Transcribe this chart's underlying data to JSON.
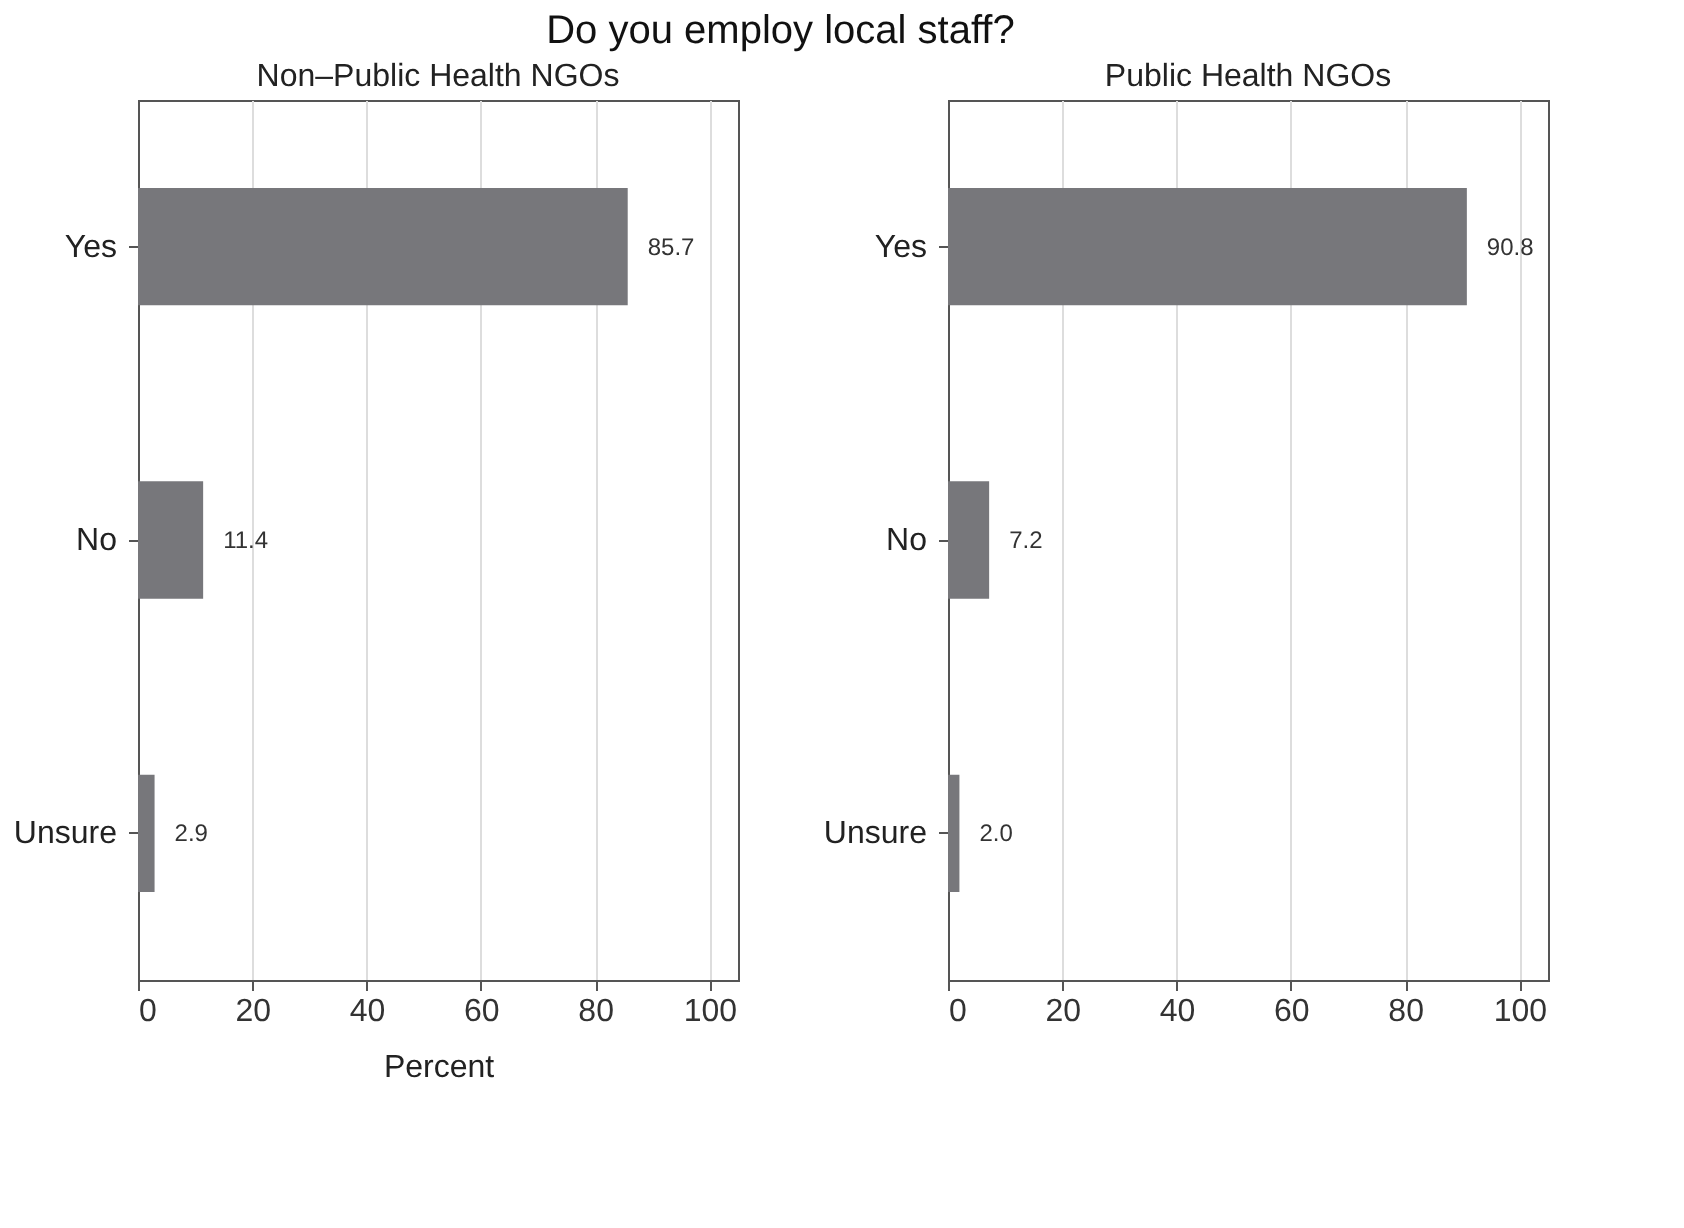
{
  "chart_data": [
    {
      "type": "bar",
      "orientation": "horizontal",
      "title": "Do you employ local staff?",
      "subtitle": "Non–Public Health NGOs",
      "xlabel": "Percent",
      "categories": [
        "Yes",
        "No",
        "Unsure"
      ],
      "values": [
        85.7,
        11.4,
        2.9
      ],
      "value_labels": [
        "85.7",
        "11.4",
        "2.9"
      ],
      "color": "#77777b",
      "xlim": [
        0,
        105
      ],
      "xticks": [
        0,
        20,
        40,
        60,
        80,
        100
      ],
      "grid": "x"
    },
    {
      "type": "bar",
      "orientation": "horizontal",
      "subtitle": "Public Health NGOs",
      "categories": [
        "Yes",
        "No",
        "Unsure"
      ],
      "values": [
        90.8,
        7.2,
        2.0
      ],
      "value_labels": [
        "90.8",
        "7.2",
        "2.0"
      ],
      "color": "#77777b",
      "xlim": [
        0,
        105
      ],
      "xticks": [
        0,
        20,
        40,
        60,
        80,
        100
      ],
      "grid": "x"
    }
  ]
}
